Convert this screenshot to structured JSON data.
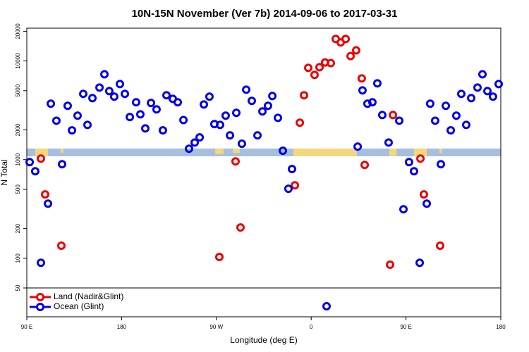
{
  "chart_data": {
    "type": "scatter",
    "title": "10N-15N November (Ver 7b)   2014-09-06 to 2017-03-31",
    "x_label": "Longitude (deg E)",
    "y_label": "N Total",
    "y_scale": "log",
    "xlim": [
      90,
      540
    ],
    "ylim": [
      25.5,
      21500
    ],
    "xticks": [
      {
        "value": 90,
        "label": "90 E"
      },
      180,
      {
        "value": 270,
        "label": "90 W"
      },
      {
        "value": 360,
        "label": "0"
      },
      {
        "value": 450,
        "label": "90 E"
      },
      {
        "value": 540,
        "label": "180"
      }
    ],
    "yticks": [
      50,
      100,
      200,
      500,
      1000,
      2000,
      5000,
      10000,
      20000
    ],
    "legend": "bottom-left",
    "series": [
      {
        "name": "Land (Nadir&Glint)",
        "color": "#ee0000",
        "x": [
          103.4,
          107.4,
          122.8,
          272.8,
          288.2,
          292.9,
          344.5,
          349.2,
          353.2,
          357.2,
          363.2,
          367.9,
          373.2,
          378.6,
          383.3,
          388.0,
          392.7,
          397.4,
          402.7,
          408.0,
          410.8,
          434.9,
          437.6,
          463.7,
          467.0,
          482.4
        ],
        "values": [
          1024,
          444,
          134,
          103,
          960,
          205,
          549,
          2370,
          4490,
          8510,
          7230,
          8630,
          9660,
          9510,
          16700,
          15400,
          16700,
          11200,
          12800,
          6650,
          883,
          86,
          2830,
          1024,
          444,
          134
        ]
      },
      {
        "name": "Ocean (Glint)",
        "color": "#0000ee",
        "x": [
          92.7,
          98.0,
          103.4,
          110.1,
          112.8,
          118.1,
          123.5,
          128.8,
          132.9,
          138.2,
          143.6,
          147.6,
          152.3,
          159.0,
          163.7,
          168.3,
          173.0,
          178.4,
          183.1,
          187.8,
          193.8,
          197.8,
          202.5,
          207.9,
          213.2,
          219.2,
          222.6,
          228.6,
          233.3,
          238.7,
          244.0,
          249.4,
          254.1,
          258.1,
          263.4,
          268.1,
          273.5,
          278.8,
          282.9,
          288.9,
          294.2,
          298.3,
          303.6,
          309.0,
          313.7,
          319.0,
          323.1,
          328.4,
          333.1,
          338.4,
          341.8,
          374.6,
          404.1,
          408.7,
          413.4,
          418.1,
          422.8,
          427.5,
          433.5,
          443.6,
          447.6,
          452.9,
          457.6,
          463.0,
          469.7,
          473.0,
          477.7,
          483.1,
          487.8,
          492.5,
          497.8,
          502.5,
          507.2,
          511.9,
          517.9,
          522.6,
          527.3,
          532.6,
          538.0
        ],
        "values": [
          944,
          762,
          90,
          358,
          3690,
          2480,
          898,
          3510,
          1980,
          2790,
          4640,
          2250,
          4200,
          5370,
          7330,
          4950,
          4350,
          5830,
          4640,
          2700,
          3810,
          2880,
          2070,
          3750,
          3230,
          1980,
          4490,
          4130,
          3810,
          2520,
          1290,
          1490,
          1680,
          3620,
          4350,
          2290,
          2250,
          2790,
          1760,
          2980,
          1450,
          5120,
          3940,
          1760,
          3080,
          3510,
          4410,
          2650,
          1230,
          506,
          802,
          32.6,
          1355,
          5030,
          3690,
          3810,
          5930,
          2830,
          1490,
          2480,
          314,
          944,
          762,
          90,
          358,
          3690,
          2480,
          898,
          3510,
          1980,
          2790,
          4640,
          2250,
          4200,
          5370,
          7330,
          4950,
          4350,
          5830
        ]
      }
    ]
  }
}
